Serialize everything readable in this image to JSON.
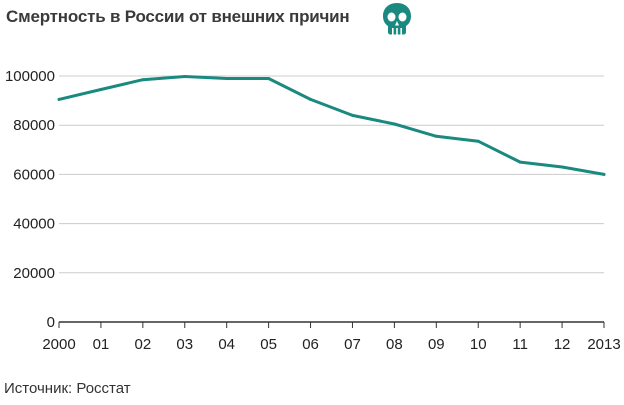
{
  "header": {
    "title": "Смертность в России от внешних причин",
    "icon": "skull-icon"
  },
  "footer": {
    "source": "Источник: Росстат"
  },
  "colors": {
    "line": "#1a8a80",
    "icon": "#1a8a80",
    "grid": "#cccccc",
    "axis": "#333333"
  },
  "chart_data": {
    "type": "line",
    "title": "Смертность в России от внешних причин",
    "x_tick_labels": [
      "2000",
      "01",
      "02",
      "03",
      "04",
      "05",
      "06",
      "07",
      "08",
      "09",
      "10",
      "11",
      "12",
      "2013"
    ],
    "x": [
      2000,
      2001,
      2002,
      2003,
      2004,
      2005,
      2006,
      2007,
      2008,
      2009,
      2010,
      2011,
      2012,
      2013
    ],
    "values": [
      90500,
      94500,
      98500,
      99800,
      99000,
      99000,
      90500,
      84000,
      80500,
      75500,
      73500,
      65000,
      63000,
      60000
    ],
    "y_ticks": [
      0,
      20000,
      40000,
      60000,
      80000,
      100000
    ],
    "y_tick_labels": [
      "0",
      "20000",
      "40000",
      "60000",
      "80000",
      "100000"
    ],
    "ylim": [
      0,
      100000
    ],
    "xlim": [
      2000,
      2013
    ],
    "xlabel": "",
    "ylabel": "",
    "grid": true,
    "legend": "none"
  }
}
